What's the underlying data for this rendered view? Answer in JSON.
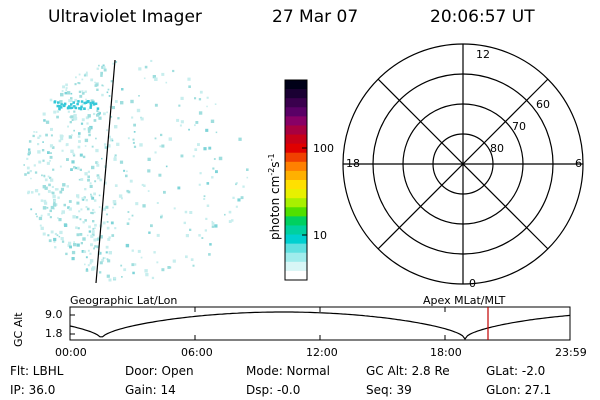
{
  "header": {
    "instrument": "Ultraviolet Imager",
    "date": "27 Mar 07",
    "time": "20:06:57 UT"
  },
  "colorbar": {
    "unit_label": "photon cm⁻²s⁻¹",
    "ticks": [
      "100",
      "10"
    ],
    "colors": [
      "#000018",
      "#1a0033",
      "#3a004d",
      "#5a0066",
      "#880066",
      "#a80040",
      "#c80018",
      "#e00000",
      "#f04000",
      "#ff8000",
      "#ffb000",
      "#ffe000",
      "#e8f000",
      "#a8f000",
      "#50e000",
      "#00d060",
      "#00d0a0",
      "#00d0d0",
      "#60e0e0",
      "#a0ecec",
      "#d8f6f6",
      "#ffffff"
    ]
  },
  "polar_plot": {
    "mlt_labels": {
      "top": "12",
      "right": "6",
      "bottom": "0",
      "left": "18"
    },
    "lat_labels": [
      "60",
      "70",
      "80"
    ]
  },
  "timeline": {
    "left_title": "Geographic Lat/Lon",
    "right_title": "Apex MLat/MLT",
    "ylabel": "GC Alt",
    "yticks": [
      "9.0",
      "1.8"
    ],
    "xticks": [
      "00:00",
      "06:00",
      "12:00",
      "18:00",
      "23:59"
    ],
    "marker_time": "20:06:57"
  },
  "status": {
    "row1": {
      "flt": "Flt: LBHL",
      "door": "Door: Open",
      "mode": "Mode: Normal",
      "gcalt": "GC Alt: 2.8 Re",
      "glat": "GLat:  -2.0"
    },
    "row2": {
      "ip": "IP: 36.0",
      "gain": "Gain: 14",
      "dsp": "Dsp:   -0.0",
      "seq": "Seq: 39",
      "glon": "GLon:  27.1"
    }
  },
  "accent_colors": {
    "marker": "#c00000",
    "aurora_speckle": "#9fdede",
    "aurora_bright": "#35c8d8"
  }
}
